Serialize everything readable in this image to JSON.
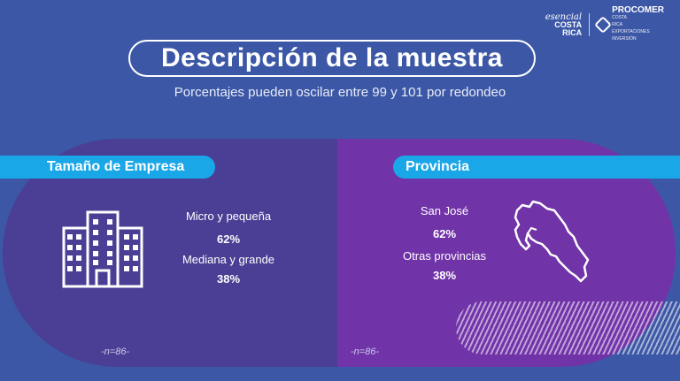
{
  "logos": {
    "esencial_script": "esencial",
    "esencial_line1": "COSTA",
    "esencial_line2": "RICA",
    "procomer_name": "PROCOMER",
    "procomer_sub1": "COSTA",
    "procomer_sub2": "RICA",
    "procomer_sub3": "EXPORTACIONES",
    "procomer_sub4": "INVERSIÓN"
  },
  "header": {
    "title": "Descripción de la muestra",
    "subtitle": "Porcentajes pueden oscilar entre 99 y 101 por redondeo"
  },
  "left_panel": {
    "banner": "Tamaño de Empresa",
    "icon": "building-icon",
    "items": [
      {
        "label": "Micro y pequeña",
        "value": "62%"
      },
      {
        "label": "Mediana y grande",
        "value": "38%"
      }
    ],
    "note": "-n=86-"
  },
  "right_panel": {
    "banner": "Provincia",
    "icon": "costa-rica-map-icon",
    "items": [
      {
        "label": "San José",
        "value": "62%"
      },
      {
        "label": "Otras provincias",
        "value": "38%"
      }
    ],
    "note": "-n=86-"
  },
  "colors": {
    "background": "#3c57a6",
    "left_panel": "#4a3f94",
    "right_panel": "#7133a8",
    "banner": "#1aa7e8"
  }
}
